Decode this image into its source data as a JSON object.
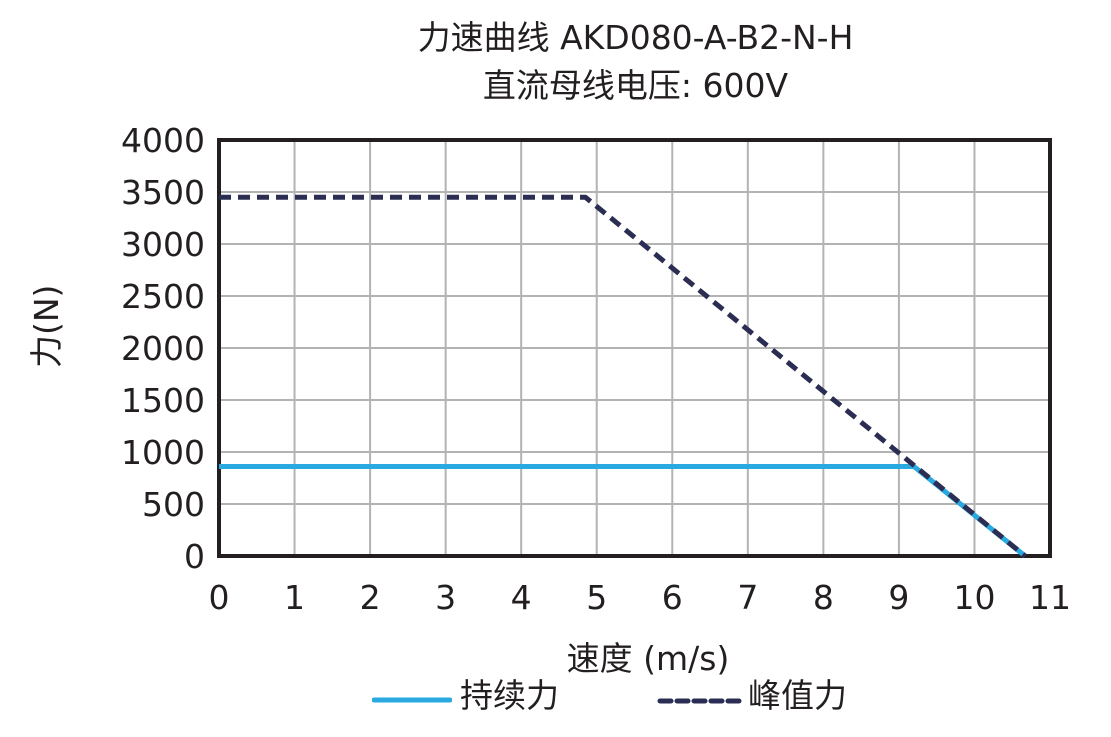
{
  "chart_data": {
    "type": "line",
    "title": "力速曲线 AKD080-A-B2-N-H",
    "subtitle": "直流母线电压: 600V",
    "xlabel": "速度 (m/s)",
    "ylabel": "力(N)",
    "xlim": [
      0,
      11
    ],
    "ylim": [
      0,
      4000
    ],
    "xticks": [
      "0",
      "1",
      "2",
      "3",
      "4",
      "5",
      "6",
      "7",
      "8",
      "9",
      "10",
      "11"
    ],
    "yticks": [
      "0",
      "500",
      "1000",
      "1500",
      "2000",
      "2500",
      "3000",
      "3500",
      "4000"
    ],
    "grid": true,
    "legend_position": "bottom",
    "series": [
      {
        "name": "持续力",
        "style": "solid",
        "color": "#29a9e0",
        "x": [
          0,
          9.2,
          10.67
        ],
        "y": [
          860,
          860,
          0
        ]
      },
      {
        "name": "峰值力",
        "style": "dashed",
        "color": "#2b2d52",
        "x": [
          0,
          4.85,
          10.67
        ],
        "y": [
          3450,
          3450,
          0
        ]
      }
    ]
  }
}
